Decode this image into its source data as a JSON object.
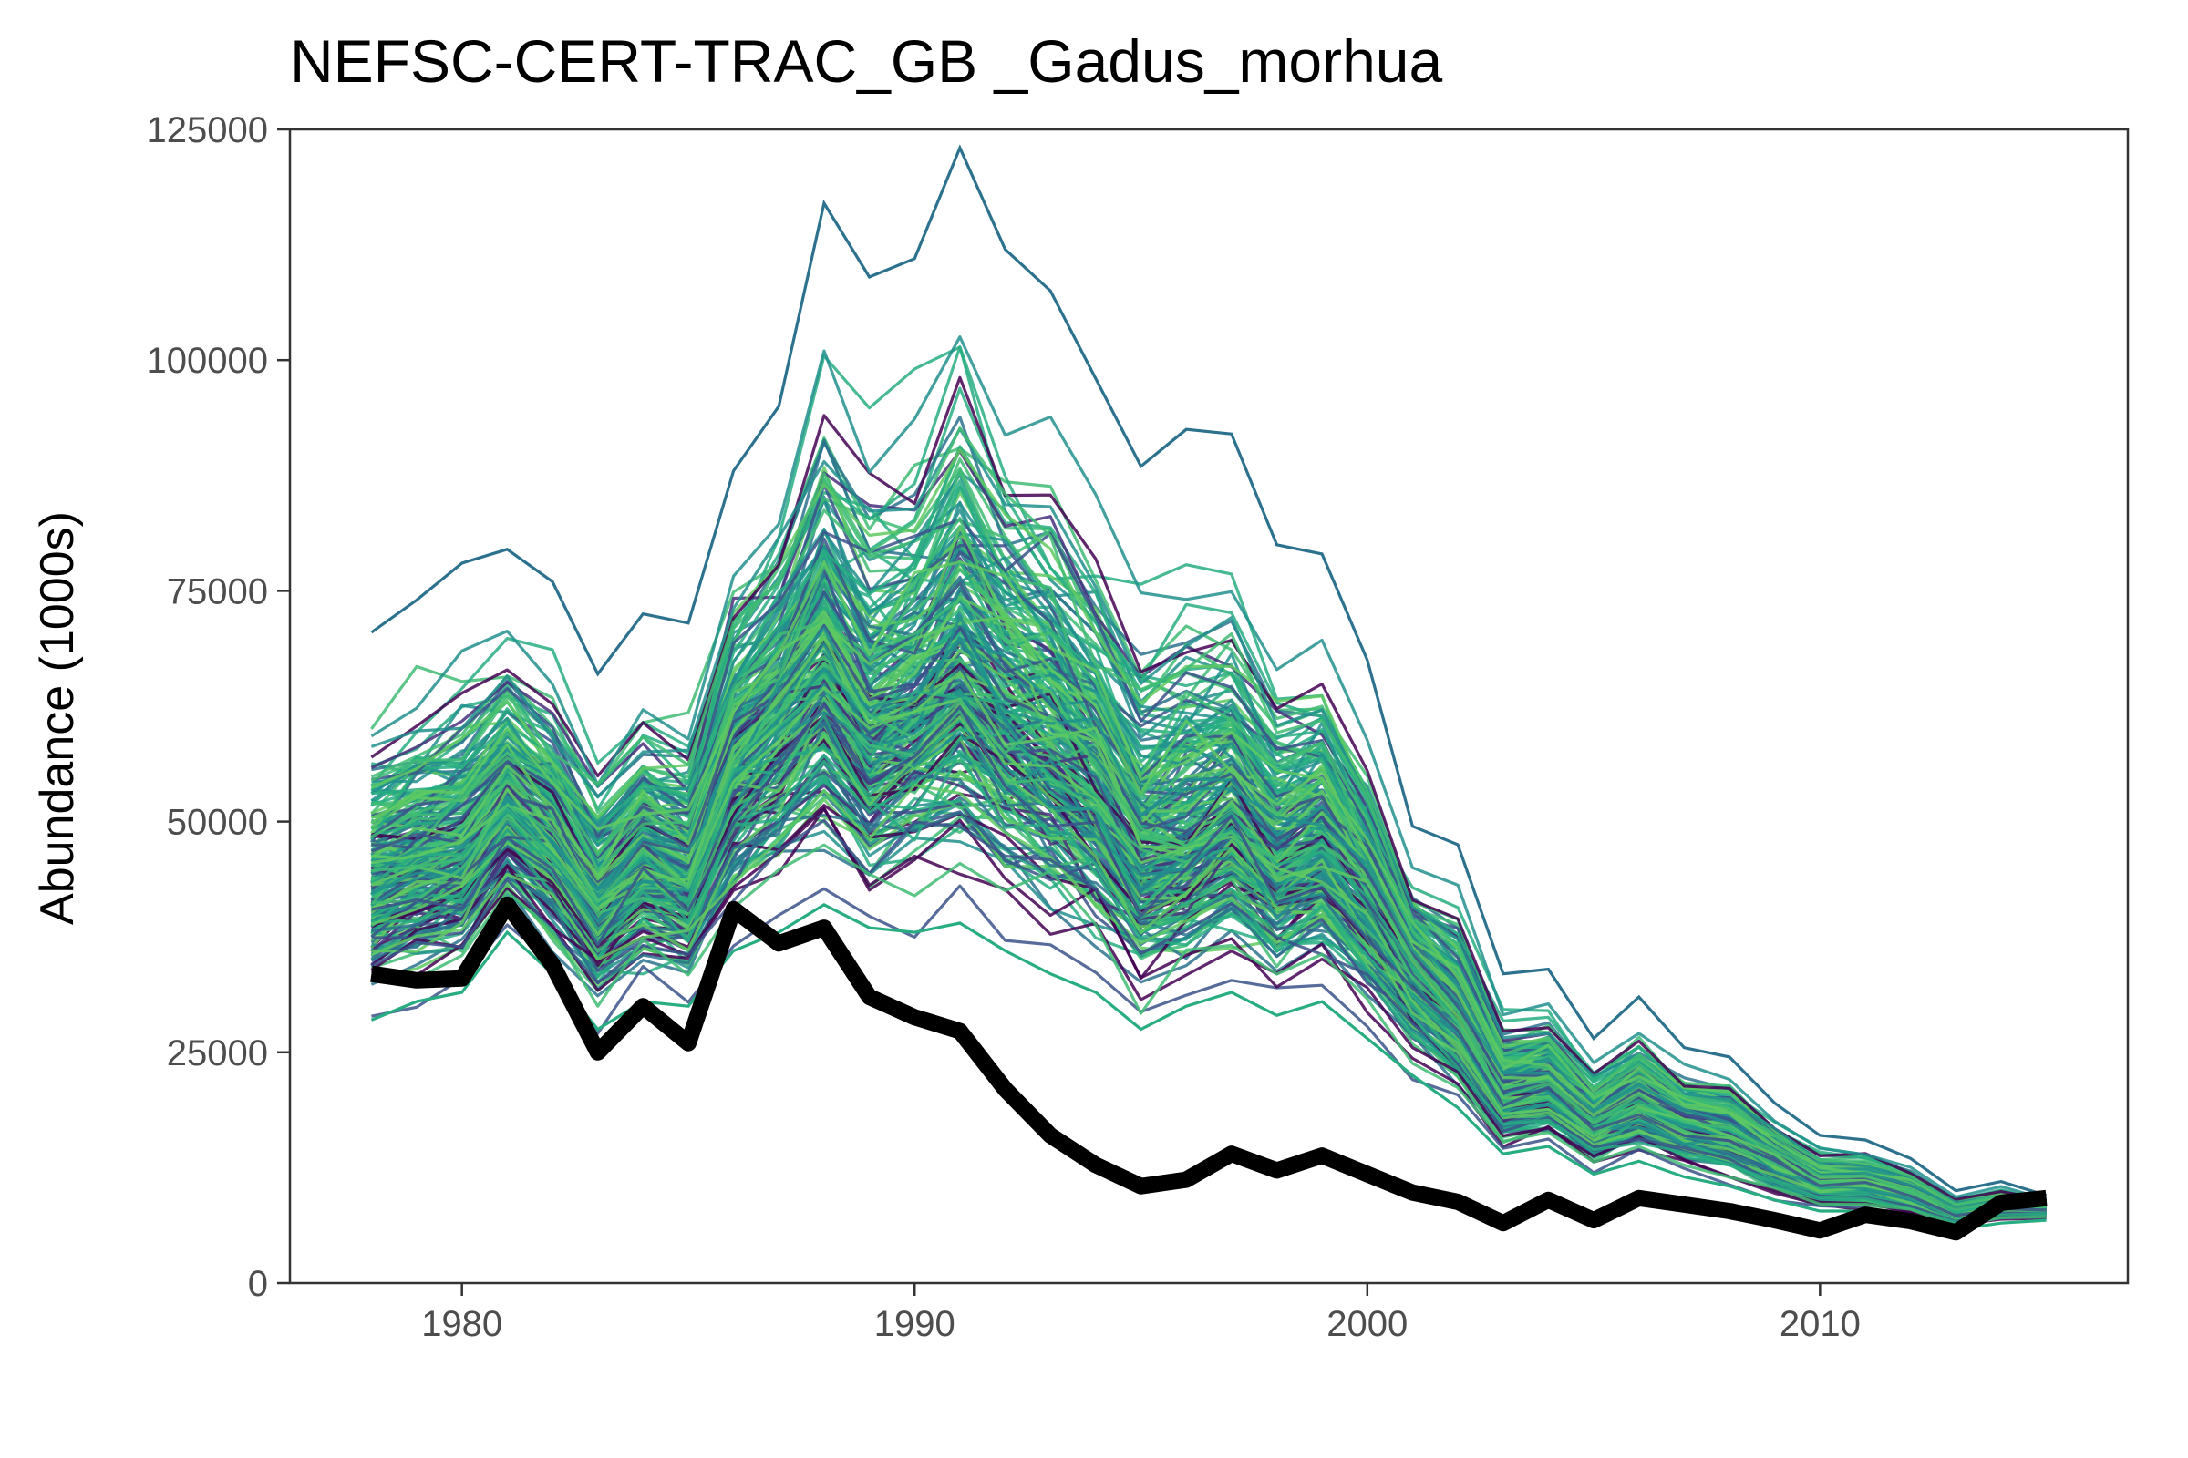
{
  "chart_data": {
    "type": "line",
    "title": "NEFSC-CERT-TRAC_GB _Gadus_morhua",
    "xlabel": "",
    "ylabel": "Abundance (1000s)",
    "xlim": [
      1976.2,
      2016.8
    ],
    "ylim": [
      0,
      125000
    ],
    "x_ticks": [
      "1980",
      "1990",
      "2000",
      "2010"
    ],
    "y_ticks": [
      "0",
      "25000",
      "50000",
      "75000",
      "100000",
      "125000"
    ],
    "grid": false,
    "legend": "none",
    "x": [
      1978,
      1979,
      1980,
      1981,
      1982,
      1983,
      1984,
      1985,
      1986,
      1987,
      1988,
      1989,
      1990,
      1991,
      1992,
      1993,
      1994,
      1995,
      1996,
      1997,
      1998,
      1999,
      2000,
      2001,
      2002,
      2003,
      2004,
      2005,
      2006,
      2007,
      2008,
      2009,
      2010,
      2011,
      2012,
      2013,
      2014,
      2015
    ],
    "series": [
      {
        "values": [
          33500,
          32800,
          33000,
          41000,
          34500,
          25000,
          30000,
          26000,
          40500,
          36800,
          38500,
          31000,
          28800,
          27300,
          21000,
          16000,
          12800,
          10500,
          11200,
          14000,
          12200,
          13800,
          11800,
          9800,
          8800,
          6500,
          9000,
          6800,
          9200,
          8500,
          7800,
          6800,
          5700,
          7400,
          6700,
          5500,
          8700,
          9200
        ],
        "color": "#000000"
      },
      {
        "values": [
          44000,
          45500,
          47000,
          53000,
          48500,
          41500,
          46500,
          44000,
          57000,
          62000,
          67000,
          60000,
          63000,
          67000,
          62000,
          59000,
          54500,
          46500,
          48000,
          51500,
          46000,
          48500,
          42500,
          34500,
          29500,
          20500,
          21500,
          17800,
          20000,
          17700,
          16800,
          13800,
          11200,
          11200,
          10100,
          7900,
          8700,
          8400
        ],
        "color": "#3fbc73",
        "envelope_low": [
          28500,
          30500,
          31500,
          38000,
          33500,
          27500,
          30500,
          30000,
          36000,
          38000,
          41000,
          38500,
          38000,
          39000,
          36000,
          33500,
          31500,
          27500,
          30000,
          31500,
          29000,
          30500,
          26500,
          22500,
          19000,
          14000,
          14800,
          11800,
          13200,
          11500,
          10500,
          9000,
          7800,
          7800,
          7200,
          5800,
          6500,
          6800
        ],
        "envelope_high": [
          70500,
          74000,
          78000,
          79500,
          76000,
          66000,
          72500,
          71500,
          88000,
          95000,
          117000,
          109000,
          111000,
          123000,
          112000,
          107500,
          98000,
          88500,
          92500,
          92000,
          80000,
          79000,
          67500,
          49500,
          47500,
          33500,
          34000,
          26500,
          31000,
          25500,
          24500,
          19500,
          16000,
          15500,
          13500,
          10000,
          11000,
          9500
        ]
      }
    ],
    "colors": {
      "series_palette": [
        "#440154",
        "#472f7d",
        "#3b528b",
        "#2c728e",
        "#21908d",
        "#27ad81",
        "#3fbc73",
        "#5ec962"
      ],
      "observed": "#000000"
    }
  }
}
